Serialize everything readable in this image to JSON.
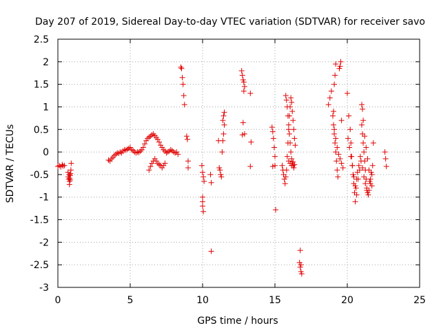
{
  "chart_data": {
    "type": "scatter",
    "title": "Day 207 of 2019, Sidereal Day-to-day VTEC variation (SDTVAR) for receiver savo",
    "xlabel": "GPS time / hours",
    "ylabel": "SDTVAR / TECUs",
    "xlim": [
      0,
      25
    ],
    "ylim": [
      -3,
      2.5
    ],
    "xticks": [
      0,
      5,
      10,
      15,
      20,
      25
    ],
    "yticks": [
      -3,
      -2.5,
      -2,
      -1.5,
      -1,
      -0.5,
      0,
      0.5,
      1,
      1.5,
      2,
      2.5
    ],
    "xtick_labels": [
      "0",
      "5",
      "10",
      "15",
      "20",
      "25"
    ],
    "ytick_labels": [
      "-3",
      "-2.5",
      "-2",
      "-1.5",
      "-1",
      "-0.5",
      "0",
      "0.5",
      "1",
      "1.5",
      "2",
      "2.5"
    ],
    "grid": true,
    "marker": "+",
    "color": "#e00000",
    "series": [
      {
        "name": "SDTVAR",
        "x": [
          0.0,
          0.1,
          0.2,
          0.3,
          0.35,
          0.45,
          0.7,
          0.72,
          0.75,
          0.78,
          0.8,
          0.82,
          0.85,
          0.87,
          0.9,
          0.92,
          0.8,
          0.85,
          3.5,
          3.6,
          3.7,
          3.8,
          3.9,
          4.0,
          4.1,
          4.2,
          4.3,
          4.4,
          4.5,
          4.6,
          4.7,
          4.8,
          4.9,
          5.0,
          5.1,
          5.2,
          5.3,
          5.4,
          5.5,
          5.6,
          5.7,
          5.8,
          5.9,
          6.0,
          6.1,
          6.2,
          6.3,
          6.4,
          6.5,
          6.6,
          6.7,
          6.8,
          6.9,
          7.0,
          7.1,
          7.2,
          7.3,
          7.4,
          7.5,
          7.6,
          7.7,
          7.8,
          7.9,
          8.0,
          8.1,
          8.2,
          8.3,
          6.3,
          6.4,
          6.5,
          6.6,
          6.7,
          6.8,
          6.9,
          7.0,
          7.1,
          7.2,
          7.3,
          7.4,
          8.5,
          8.55,
          8.6,
          8.65,
          8.7,
          8.75,
          8.9,
          8.95,
          9.0,
          9.0,
          9.95,
          10.0,
          10.05,
          10.1,
          10.0,
          10.0,
          10.0,
          10.05,
          10.55,
          10.6,
          10.6,
          11.1,
          11.15,
          11.2,
          11.25,
          11.3,
          11.35,
          11.4,
          11.45,
          11.5,
          11.4,
          11.45,
          11.5,
          12.7,
          12.75,
          12.8,
          12.85,
          12.9,
          12.85,
          12.8,
          12.9,
          12.75,
          13.3,
          13.35,
          13.3,
          14.8,
          14.85,
          14.9,
          14.95,
          15.0,
          15.0,
          14.85,
          15.05,
          15.5,
          15.55,
          15.6,
          15.65,
          15.7,
          15.75,
          15.8,
          15.85,
          15.9,
          15.95,
          16.0,
          16.05,
          16.1,
          16.15,
          16.2,
          16.25,
          16.3,
          16.35,
          16.4,
          15.75,
          15.8,
          15.85,
          15.9,
          15.95,
          16.0,
          16.05,
          16.1,
          16.15,
          16.2,
          16.25,
          16.3,
          15.95,
          16.05,
          16.15,
          16.25,
          16.35,
          16.7,
          16.75,
          16.8,
          16.85,
          16.8,
          16.75,
          18.7,
          18.8,
          18.9,
          19.0,
          19.05,
          19.1,
          19.15,
          19.2,
          19.25,
          19.3,
          19.35,
          19.1,
          19.15,
          19.2,
          19.05,
          19.1,
          19.2,
          19.3,
          19.4,
          19.5,
          19.6,
          19.7,
          19.45,
          19.5,
          19.55,
          19.6,
          20.0,
          20.1,
          20.2,
          20.25,
          20.3,
          20.35,
          20.4,
          20.45,
          20.5,
          20.55,
          20.6,
          20.65,
          20.7,
          20.8,
          20.9,
          21.0,
          21.05,
          21.1,
          21.15,
          21.2,
          21.25,
          21.3,
          21.35,
          21.4,
          21.5,
          21.6,
          21.7,
          21.75,
          21.8,
          20.05,
          20.15,
          20.25,
          20.35,
          20.45,
          20.55,
          20.65,
          20.75,
          20.85,
          20.95,
          21.0,
          21.05,
          21.1,
          21.2,
          21.3,
          21.4,
          21.5,
          21.6,
          21.7,
          21.05,
          21.15,
          21.25,
          21.35,
          21.45,
          21.55,
          21.65,
          22.6,
          22.65,
          22.7
        ],
        "y": [
          -0.32,
          -0.3,
          -0.33,
          -0.28,
          -0.31,
          -0.3,
          -0.45,
          -0.55,
          -0.6,
          -0.5,
          -0.65,
          -0.58,
          -0.52,
          -0.48,
          -0.4,
          -0.25,
          -0.72,
          -0.62,
          -0.18,
          -0.2,
          -0.15,
          -0.12,
          -0.08,
          -0.05,
          -0.02,
          -0.03,
          0.0,
          -0.02,
          0.02,
          0.05,
          0.04,
          0.06,
          0.08,
          0.1,
          0.05,
          0.03,
          0.0,
          -0.02,
          0.0,
          -0.01,
          0.02,
          0.05,
          0.1,
          0.18,
          0.25,
          0.3,
          0.33,
          0.35,
          0.38,
          0.4,
          0.36,
          0.32,
          0.28,
          0.22,
          0.15,
          0.1,
          0.05,
          0.02,
          -0.02,
          0.0,
          0.02,
          0.05,
          0.03,
          0.0,
          -0.02,
          0.0,
          -0.05,
          -0.4,
          -0.32,
          -0.25,
          -0.2,
          -0.15,
          -0.2,
          -0.25,
          -0.28,
          -0.3,
          -0.35,
          -0.3,
          -0.25,
          1.88,
          1.85,
          1.65,
          1.5,
          1.25,
          1.05,
          0.35,
          0.28,
          -0.2,
          -0.35,
          -0.3,
          -0.45,
          -0.55,
          -0.65,
          -1.0,
          -1.1,
          -1.2,
          -1.32,
          -0.5,
          -0.68,
          -2.2,
          0.25,
          -0.35,
          -0.4,
          -0.5,
          -0.55,
          0.0,
          0.25,
          0.4,
          0.6,
          0.7,
          0.8,
          0.88,
          1.8,
          1.7,
          1.6,
          1.55,
          1.45,
          1.35,
          0.65,
          0.4,
          0.38,
          1.3,
          0.22,
          -0.32,
          0.55,
          0.45,
          0.3,
          0.1,
          -0.1,
          -0.3,
          -0.32,
          -1.28,
          -0.3,
          -0.4,
          -0.5,
          -0.6,
          -0.7,
          -0.55,
          -0.4,
          -0.1,
          0.2,
          0.5,
          0.8,
          1.0,
          1.2,
          1.1,
          0.9,
          0.7,
          0.5,
          0.3,
          0.15,
          1.25,
          1.15,
          1.0,
          0.8,
          0.6,
          0.4,
          0.2,
          0.0,
          -0.15,
          -0.25,
          -0.3,
          -0.35,
          -0.2,
          -0.25,
          -0.3,
          -0.22,
          -0.28,
          -2.45,
          -2.55,
          -2.65,
          -2.7,
          -2.5,
          -2.18,
          1.05,
          1.2,
          1.35,
          0.8,
          0.6,
          0.4,
          0.2,
          0.0,
          -0.2,
          -0.4,
          -0.55,
          1.5,
          1.7,
          1.95,
          0.9,
          0.5,
          0.3,
          0.1,
          -0.05,
          -0.15,
          -0.25,
          -0.35,
          1.85,
          1.9,
          2.0,
          0.7,
          1.3,
          0.8,
          0.5,
          0.2,
          -0.1,
          -0.3,
          -0.5,
          -0.7,
          -0.9,
          -1.1,
          -0.8,
          -0.6,
          -0.45,
          -0.3,
          -0.1,
          0.6,
          0.4,
          0.2,
          0.0,
          -0.2,
          -0.4,
          -0.6,
          -0.8,
          -0.9,
          -0.85,
          -0.7,
          -0.5,
          -0.3,
          0.2,
          0.3,
          0.1,
          -0.1,
          -0.3,
          -0.55,
          -0.75,
          -0.95,
          -0.6,
          -0.4,
          -0.2,
          1.05,
          0.95,
          0.7,
          0.35,
          0.1,
          -0.15,
          -0.4,
          -0.6,
          -0.75,
          -0.35,
          -0.55,
          -0.7,
          -0.85,
          -0.95,
          -0.65,
          -0.45,
          0.0,
          -0.15,
          -0.32
        ]
      }
    ]
  }
}
